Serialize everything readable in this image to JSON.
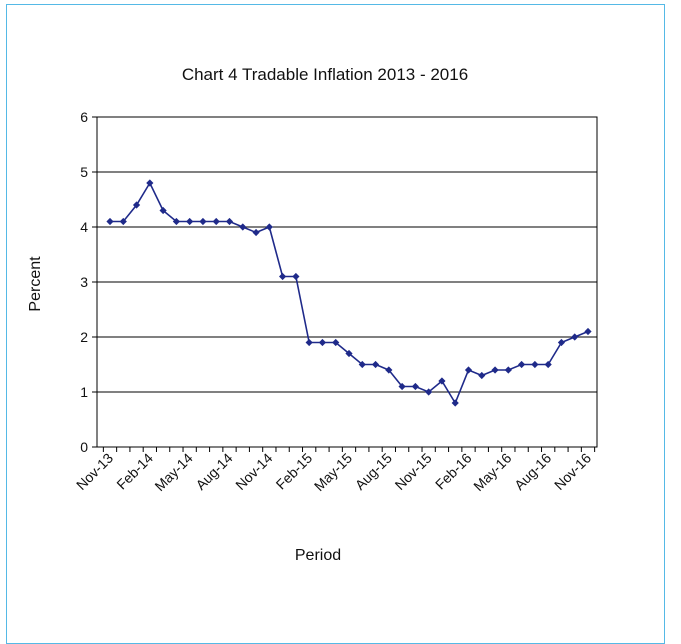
{
  "chart_data": {
    "type": "line",
    "title": "Chart 4 Tradable Inflation 2013 - 2016",
    "xlabel": "Period",
    "ylabel": "Percent",
    "ylim": [
      0,
      6
    ],
    "yticks": [
      0,
      1,
      2,
      3,
      4,
      5,
      6
    ],
    "grid": "horizontal",
    "x": [
      "Nov-13",
      "Dec-13",
      "Jan-14",
      "Feb-14",
      "Mar-14",
      "Apr-14",
      "May-14",
      "Jun-14",
      "Jul-14",
      "Aug-14",
      "Sep-14",
      "Oct-14",
      "Nov-14",
      "Dec-14",
      "Jan-15",
      "Feb-15",
      "Mar-15",
      "Apr-15",
      "May-15",
      "Jun-15",
      "Jul-15",
      "Aug-15",
      "Sep-15",
      "Oct-15",
      "Nov-15",
      "Dec-15",
      "Jan-16",
      "Feb-16",
      "Mar-16",
      "Apr-16",
      "May-16",
      "Jun-16",
      "Jul-16",
      "Aug-16",
      "Sep-16",
      "Oct-16",
      "Nov-16"
    ],
    "xtick_labels": [
      "Nov-13",
      "Feb-14",
      "May-14",
      "Aug-14",
      "Nov-14",
      "Feb-15",
      "May-15",
      "Aug-15",
      "Nov-15",
      "Feb-16",
      "May-16",
      "Aug-16",
      "Nov-16"
    ],
    "series": [
      {
        "values": [
          4.1,
          4.1,
          4.4,
          4.8,
          4.3,
          4.1,
          4.1,
          4.1,
          4.1,
          4.1,
          4.0,
          3.9,
          4.0,
          3.1,
          3.1,
          1.9,
          1.9,
          1.9,
          1.7,
          1.5,
          1.5,
          1.4,
          1.1,
          1.1,
          1.0,
          1.2,
          0.8,
          1.4,
          1.3,
          1.4,
          1.4,
          1.5,
          1.5,
          1.5,
          1.9,
          2.0,
          2.1
        ]
      }
    ],
    "colors": {
      "line": "#1f2a8a",
      "grid": "#000000"
    }
  }
}
